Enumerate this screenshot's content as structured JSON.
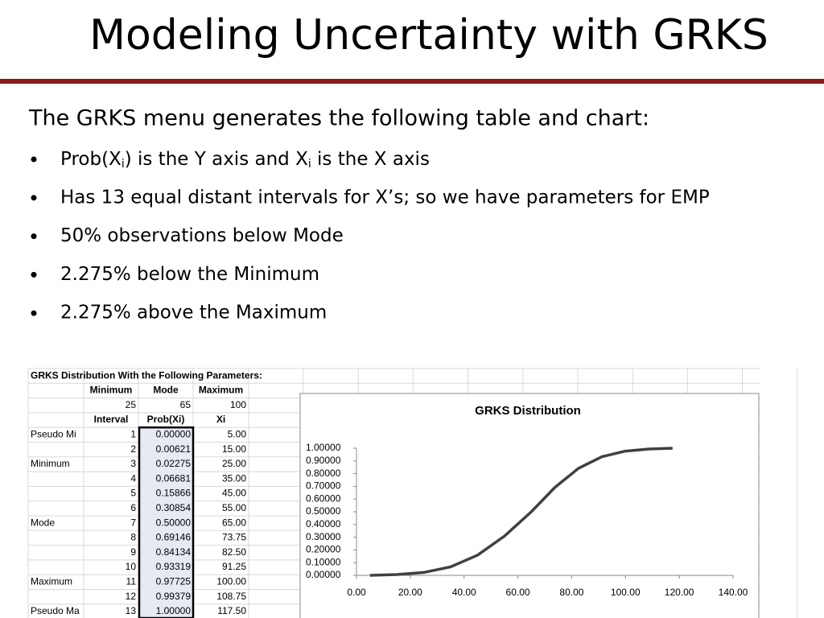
{
  "header": {
    "title": "Modeling Uncertainty with GRKS"
  },
  "intro": "The GRKS menu generates the following table and chart:",
  "bullets": [
    {
      "segments": [
        {
          "text": "Prob(X"
        },
        {
          "sub": "i"
        },
        {
          "text": ") is the Y axis and X"
        },
        {
          "sub": "i"
        },
        {
          "text": " is the X axis"
        }
      ]
    },
    {
      "text": "Has 13 equal distant intervals for X’s; so we have parameters for EMP"
    },
    {
      "text": "50% observations below Mode"
    },
    {
      "text": "2.275% below the Minimum"
    },
    {
      "text": "2.275% above the Maximum"
    }
  ],
  "table": {
    "title": "GRKS Distribution With the Following Parameters:",
    "param_headers": [
      "Minimum",
      "Mode",
      "Maximum"
    ],
    "params": [
      25,
      65,
      100
    ],
    "columns": [
      "Interval",
      "Prob(Xi)",
      "Xi"
    ],
    "rows": [
      {
        "label": "Pseudo Mi",
        "interval": 1,
        "prob": "0.00000",
        "xi": "5.00"
      },
      {
        "interval": 2,
        "prob": "0.00621",
        "xi": "15.00"
      },
      {
        "label": "Minimum",
        "interval": 3,
        "prob": "0.02275",
        "xi": "25.00"
      },
      {
        "interval": 4,
        "prob": "0.06681",
        "xi": "35.00"
      },
      {
        "interval": 5,
        "prob": "0.15866",
        "xi": "45.00"
      },
      {
        "interval": 6,
        "prob": "0.30854",
        "xi": "55.00"
      },
      {
        "label": "Mode",
        "interval": 7,
        "prob": "0.50000",
        "xi": "65.00"
      },
      {
        "interval": 8,
        "prob": "0.69146",
        "xi": "73.75"
      },
      {
        "interval": 9,
        "prob": "0.84134",
        "xi": "82.50"
      },
      {
        "interval": 10,
        "prob": "0.93319",
        "xi": "91.25"
      },
      {
        "label": "Maximum",
        "interval": 11,
        "prob": "0.97725",
        "xi": "100.00"
      },
      {
        "interval": 12,
        "prob": "0.99379",
        "xi": "108.75"
      },
      {
        "label": "Pseudo Ma",
        "interval": 13,
        "prob": "1.00000",
        "xi": "117.50"
      }
    ]
  },
  "chart_data": {
    "type": "line",
    "title": "GRKS Distribution",
    "x": [
      5,
      15,
      25,
      35,
      45,
      55,
      65,
      73.75,
      82.5,
      91.25,
      100,
      108.75,
      117.5
    ],
    "series": [
      {
        "color": "#404040",
        "values": [
          0,
          0.00621,
          0.02275,
          0.06681,
          0.15866,
          0.30854,
          0.5,
          0.69146,
          0.84134,
          0.93319,
          0.97725,
          0.99379,
          1
        ]
      }
    ],
    "xlim": [
      0,
      140
    ],
    "xticks": [
      {
        "value": 0,
        "label": "0.00"
      },
      {
        "value": 20,
        "label": "20.00"
      },
      {
        "value": 40,
        "label": "40.00"
      },
      {
        "value": 60,
        "label": "60.00"
      },
      {
        "value": 80,
        "label": "80.00"
      },
      {
        "value": 100,
        "label": "100.00"
      },
      {
        "value": 120,
        "label": "120.00"
      },
      {
        "value": 140,
        "label": "140.00"
      }
    ],
    "ylim": [
      0,
      1
    ],
    "yticks": [
      {
        "value": 0,
        "label": "0.00000"
      },
      {
        "value": 0.1,
        "label": "0.10000"
      },
      {
        "value": 0.2,
        "label": "0.20000"
      },
      {
        "value": 0.3,
        "label": "0.30000"
      },
      {
        "value": 0.4,
        "label": "0.40000"
      },
      {
        "value": 0.5,
        "label": "0.50000"
      },
      {
        "value": 0.6,
        "label": "0.60000"
      },
      {
        "value": 0.7,
        "label": "0.70000"
      },
      {
        "value": 0.8,
        "label": "0.80000"
      },
      {
        "value": 0.9,
        "label": "0.90000"
      },
      {
        "value": 1,
        "label": "1.00000"
      }
    ]
  }
}
